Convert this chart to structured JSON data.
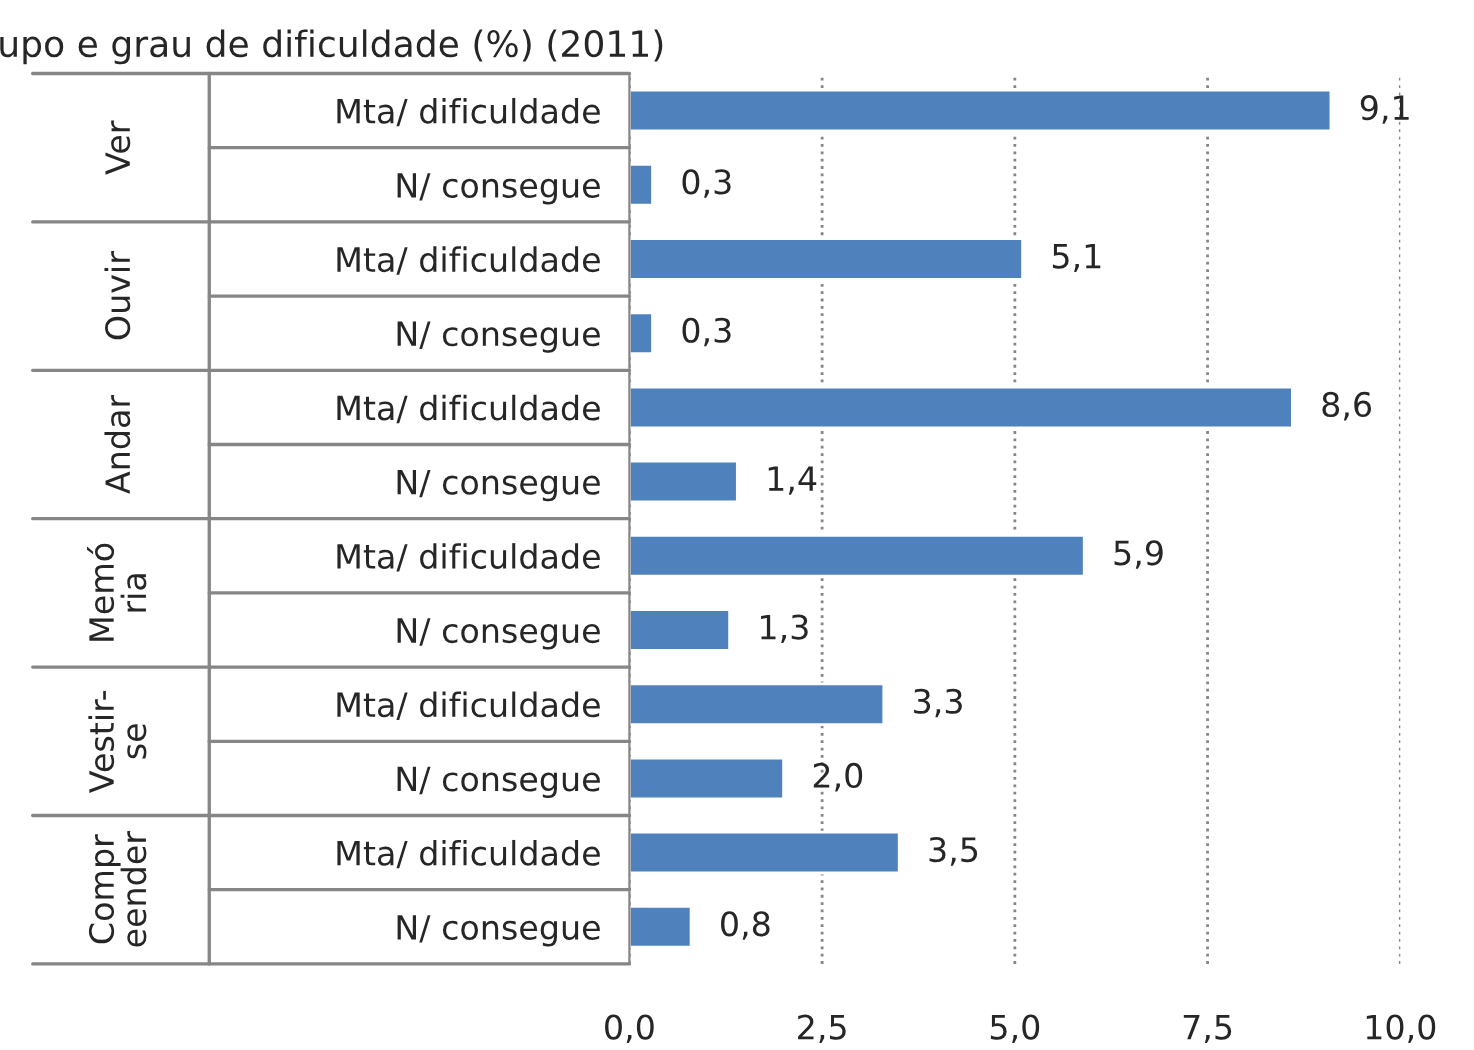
{
  "chart_data": {
    "type": "bar",
    "orientation": "horizontal",
    "title": "upo e grau de dificuldade (%) (2011)",
    "categories": [
      "Mta/ dificuldade",
      "N/ consegue",
      "Mta/ dificuldade",
      "N/ consegue",
      "Mta/ dificuldade",
      "N/ consegue",
      "Mta/ dificuldade",
      "N/ consegue",
      "Mta/ dificuldade",
      "N/ consegue",
      "Mta/ dificuldade",
      "N/ consegue"
    ],
    "values": [
      9.1,
      0.3,
      5.1,
      0.3,
      8.6,
      1.4,
      5.9,
      1.3,
      3.3,
      2.0,
      3.5,
      0.8
    ],
    "value_labels": [
      "9,1",
      "0,3",
      "5,1",
      "0,3",
      "8,6",
      "1,4",
      "5,9",
      "1,3",
      "3,3",
      "2,0",
      "3,5",
      "0,8"
    ],
    "color": "#4f81bd",
    "annotations": [
      "Ver",
      "Ouvir",
      "Andar",
      "Memó\nria",
      "Vestir-\nse",
      "Compr\neender"
    ],
    "xlim": [
      0,
      10
    ],
    "xticks": [
      {
        "value": 0,
        "label": "0,0"
      },
      {
        "value": 2.5,
        "label": "2,5"
      },
      {
        "value": 5,
        "label": "5,0"
      },
      {
        "value": 7.5,
        "label": "7,5"
      },
      {
        "value": 10,
        "label": "10,0"
      }
    ],
    "grid": "x"
  }
}
